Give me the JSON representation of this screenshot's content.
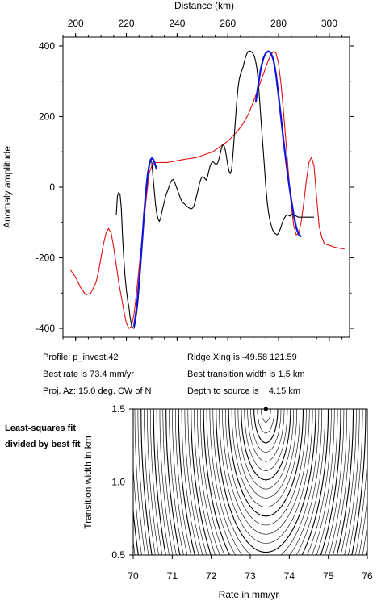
{
  "chart_data": [
    {
      "type": "line",
      "xlabel": "Distance (km)",
      "ylabel": "Anomaly amplitude",
      "xlim": [
        195,
        308
      ],
      "ylim": [
        -425,
        425
      ],
      "xticks": [
        200,
        220,
        240,
        260,
        280,
        300
      ],
      "yticks": [
        -400,
        -200,
        0,
        200,
        400
      ],
      "grid": false,
      "colors": {
        "observed": "#000000",
        "model": "#e01010",
        "fit": "#1414d8"
      },
      "series": [
        {
          "key": "observed",
          "x": [
            216,
            216.5,
            217,
            217.5,
            218,
            218.5,
            219,
            219.5,
            220,
            220.5,
            221,
            221.5,
            222,
            222.5,
            223,
            223.5,
            224,
            224.5,
            225,
            225.5,
            226,
            226.5,
            227,
            227.5,
            228,
            228.5,
            229,
            229.5,
            230,
            230.5,
            231,
            231.5,
            232,
            232.5,
            233,
            233.5,
            234,
            234.5,
            235,
            235.5,
            236,
            236.5,
            237,
            237.5,
            238,
            238.5,
            239,
            239.5,
            240,
            240.5,
            241,
            241.5,
            242,
            242.5,
            243,
            243.5,
            244,
            244.5,
            245,
            245.5,
            246,
            246.5,
            247,
            247.5,
            248,
            248.5,
            249,
            249.5,
            250,
            250.5,
            251,
            251.5,
            252,
            252.5,
            253,
            253.5,
            254,
            254.5,
            255,
            255.5,
            256,
            256.5,
            257,
            257.5,
            258,
            258.5,
            259,
            259.5,
            260,
            260.5,
            261,
            261.5,
            262,
            262.5,
            263,
            263.5,
            264,
            264.5,
            265,
            265.5,
            266,
            266.5,
            267,
            267.5,
            268,
            268.5,
            269,
            269.5,
            270,
            270.5,
            271,
            271.5,
            272,
            272.5,
            273,
            273.5,
            274,
            274.5,
            275,
            275.5,
            276,
            276.5,
            277,
            277.5,
            278,
            278.5,
            279,
            279.5,
            280,
            280.5,
            281,
            281.5,
            282,
            282.5,
            283,
            283.5,
            284,
            284.5,
            285,
            285.5,
            286,
            286.5,
            287,
            287.5,
            288,
            288.5,
            289,
            289.5,
            290,
            290.5,
            291,
            291.5,
            292,
            292.5,
            293,
            293.5,
            294
          ],
          "y": [
            -80,
            -25,
            -15,
            -20,
            -60,
            -140,
            -205,
            -255,
            -290,
            -320,
            -340,
            -370,
            -390,
            -398,
            -400,
            -385,
            -360,
            -330,
            -290,
            -240,
            -185,
            -130,
            -80,
            -35,
            10,
            40,
            65,
            80,
            70,
            30,
            -10,
            -50,
            -75,
            -90,
            -97,
            -88,
            -70,
            -55,
            -40,
            -25,
            -15,
            -5,
            5,
            15,
            20,
            22,
            15,
            5,
            -5,
            -15,
            -25,
            -35,
            -42,
            -45,
            -48,
            -52,
            -55,
            -58,
            -60,
            -62,
            -60,
            -55,
            -45,
            -30,
            -15,
            0,
            15,
            25,
            30,
            28,
            24,
            20,
            30,
            45,
            60,
            68,
            72,
            70,
            66,
            65,
            68,
            80,
            95,
            110,
            120,
            118,
            105,
            85,
            62,
            45,
            38,
            50,
            90,
            140,
            190,
            240,
            280,
            305,
            320,
            330,
            340,
            355,
            368,
            378,
            384,
            386,
            385,
            382,
            378,
            370,
            355,
            335,
            300,
            250,
            200,
            150,
            100,
            50,
            0,
            -40,
            -70,
            -90,
            -105,
            -118,
            -126,
            -130,
            -133,
            -135,
            -130,
            -122,
            -112,
            -100,
            -92,
            -85,
            -80,
            -78,
            -80,
            -82,
            -78,
            -76,
            -78,
            -80,
            -82,
            -84,
            -85,
            -85,
            -85,
            -85,
            -85,
            -85,
            -85,
            -85,
            -85,
            -85,
            -85,
            -85,
            -85
          ]
        },
        {
          "key": "model",
          "x": [
            198,
            200,
            202,
            204,
            206,
            208,
            209,
            210,
            211,
            212,
            213,
            214,
            215,
            216,
            217,
            218,
            219,
            220,
            221,
            222,
            223,
            224,
            225,
            226,
            227,
            228,
            229,
            230,
            231,
            232,
            233,
            234,
            236,
            238,
            240,
            242,
            244,
            246,
            248,
            250,
            252,
            254,
            256,
            258,
            260,
            262,
            264,
            266,
            268,
            270,
            271,
            272,
            273,
            274,
            275,
            276,
            277,
            278,
            279,
            280,
            281,
            282,
            283,
            284,
            285,
            286,
            287,
            288,
            289,
            290,
            291,
            292,
            293,
            294,
            295,
            296,
            297,
            298,
            300,
            302,
            304,
            306
          ],
          "y": [
            -235,
            -255,
            -285,
            -305,
            -300,
            -270,
            -240,
            -200,
            -160,
            -130,
            -117,
            -130,
            -170,
            -220,
            -270,
            -310,
            -350,
            -385,
            -400,
            -395,
            -360,
            -300,
            -230,
            -160,
            -90,
            -20,
            40,
            60,
            68,
            70,
            70,
            70,
            70,
            72,
            75,
            78,
            80,
            82,
            85,
            90,
            95,
            100,
            110,
            120,
            130,
            145,
            160,
            180,
            205,
            240,
            260,
            280,
            300,
            320,
            340,
            360,
            376,
            384,
            380,
            350,
            290,
            210,
            120,
            30,
            -50,
            -110,
            -135,
            -130,
            -95,
            -40,
            20,
            70,
            85,
            60,
            -30,
            -110,
            -140,
            -160,
            -165,
            -170,
            -173,
            -175
          ]
        },
        {
          "key": "fit",
          "x": [
            223,
            223.5,
            224,
            224.5,
            225,
            225.5,
            226,
            226.5,
            227,
            227.5,
            228,
            228.5,
            229,
            229.5,
            230,
            230.5,
            231,
            231.5,
            232,
            271,
            272,
            273,
            274,
            275,
            276,
            277,
            278,
            279,
            280,
            281,
            282,
            283,
            284,
            285,
            286,
            287,
            288,
            289
          ],
          "y": [
            -395,
            -372,
            -345,
            -310,
            -270,
            -225,
            -175,
            -125,
            -75,
            -30,
            10,
            40,
            62,
            76,
            82,
            80,
            72,
            60,
            50,
            240,
            290,
            335,
            365,
            380,
            385,
            380,
            360,
            320,
            260,
            195,
            130,
            70,
            15,
            -35,
            -80,
            -115,
            -135,
            -140
          ]
        }
      ]
    },
    {
      "type": "contour",
      "xlabel": "Rate in mm/yr",
      "ylabel": "Transition width in km",
      "xlim": [
        70,
        76
      ],
      "ylim": [
        0.5,
        1.5
      ],
      "xticks": [
        70,
        71,
        72,
        73,
        74,
        75,
        76
      ],
      "yticks": [
        0.5,
        1.0,
        1.5
      ],
      "tick_labels_y": [
        "0.5",
        "1.0",
        "1.5"
      ],
      "grid": false,
      "best_fit_marker": {
        "rate": 73.4,
        "width": 1.5
      }
    }
  ],
  "profile_info": {
    "profile": "Profile: p_invest.42",
    "best_rate": "Best rate is 73.4 mm/yr",
    "proj_az": "Proj. Az: 15.0 deg. CW of N",
    "ridge_xing": "Ridge Xing is -49.58 121.59",
    "best_width": "Best transition width is 1.5 km",
    "depth": "Depth to source is    4.15 km"
  },
  "side_note": "Least-squares fit divided by best fit"
}
